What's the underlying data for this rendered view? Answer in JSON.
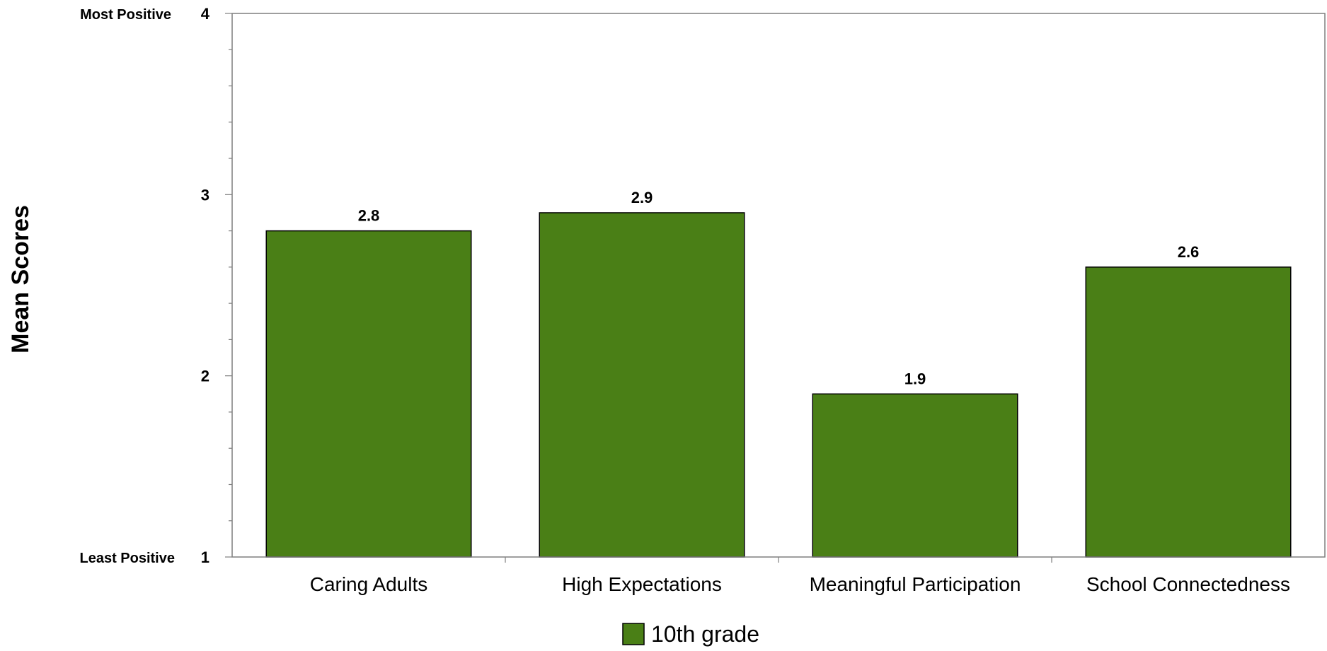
{
  "chart_data": {
    "type": "bar",
    "categories": [
      "Caring Adults",
      "High Expectations",
      "Meaningful Participation",
      "School Connectedness"
    ],
    "series": [
      {
        "name": "10th grade",
        "values": [
          2.8,
          2.9,
          1.9,
          2.6
        ],
        "color": "#4a7f16"
      }
    ],
    "data_labels": [
      "2.8",
      "2.9",
      "1.9",
      "2.6"
    ],
    "ylabel": "Mean Scores",
    "ylim": [
      1,
      4
    ],
    "yticks": [
      1,
      2,
      3,
      4
    ],
    "ytick_labels": [
      "1",
      "2",
      "3",
      "4"
    ],
    "y_end_labels": {
      "top": "Most Positive",
      "bottom": "Least Positive"
    },
    "legend_placement": "bottom-center",
    "grid": false
  }
}
